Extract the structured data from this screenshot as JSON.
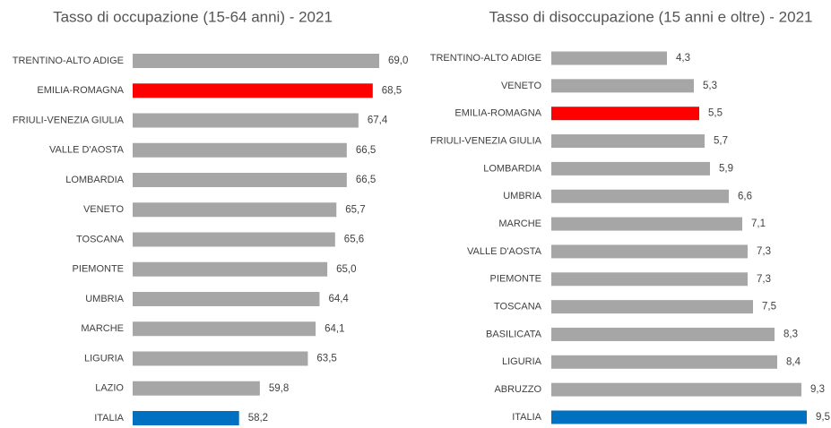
{
  "chart_data": [
    {
      "type": "bar",
      "orientation": "horizontal",
      "title": "Tasso di occupazione (15-64 anni) -  2021",
      "categories": [
        "TRENTINO-ALTO ADIGE",
        "EMILIA-ROMAGNA",
        "FRIULI-VENEZIA GIULIA",
        "VALLE D'AOSTA",
        "LOMBARDIA",
        "VENETO",
        "TOSCANA",
        "PIEMONTE",
        "UMBRIA",
        "MARCHE",
        "LIGURIA",
        "LAZIO",
        "ITALIA"
      ],
      "values": [
        69.0,
        68.5,
        67.4,
        66.5,
        66.5,
        65.7,
        65.6,
        65.0,
        64.4,
        64.1,
        63.5,
        59.8,
        58.2
      ],
      "value_labels": [
        "69,0",
        "68,5",
        "67,4",
        "66,5",
        "66,5",
        "65,7",
        "65,6",
        "65,0",
        "64,4",
        "64,1",
        "63,5",
        "59,8",
        "58,2"
      ],
      "colors": [
        "#a6a6a6",
        "#ff0000",
        "#a6a6a6",
        "#a6a6a6",
        "#a6a6a6",
        "#a6a6a6",
        "#a6a6a6",
        "#a6a6a6",
        "#a6a6a6",
        "#a6a6a6",
        "#a6a6a6",
        "#a6a6a6",
        "#0070c0"
      ],
      "xlim": [
        50,
        70
      ]
    },
    {
      "type": "bar",
      "orientation": "horizontal",
      "title": "Tasso di disoccupazione (15 anni e oltre) -  2021",
      "categories": [
        "TRENTINO-ALTO ADIGE",
        "VENETO",
        "EMILIA-ROMAGNA",
        "FRIULI-VENEZIA GIULIA",
        "LOMBARDIA",
        "UMBRIA",
        "MARCHE",
        "VALLE D'AOSTA",
        "PIEMONTE",
        "TOSCANA",
        "BASILICATA",
        "LIGURIA",
        "ABRUZZO",
        "ITALIA"
      ],
      "values": [
        4.3,
        5.3,
        5.5,
        5.7,
        5.9,
        6.6,
        7.1,
        7.3,
        7.3,
        7.5,
        8.3,
        8.4,
        9.3,
        9.5
      ],
      "value_labels": [
        "4,3",
        "5,3",
        "5,5",
        "5,7",
        "5,9",
        "6,6",
        "7,1",
        "7,3",
        "7,3",
        "7,5",
        "8,3",
        "8,4",
        "9,3",
        "9,5"
      ],
      "colors": [
        "#a6a6a6",
        "#a6a6a6",
        "#ff0000",
        "#a6a6a6",
        "#a6a6a6",
        "#a6a6a6",
        "#a6a6a6",
        "#a6a6a6",
        "#a6a6a6",
        "#a6a6a6",
        "#a6a6a6",
        "#a6a6a6",
        "#a6a6a6",
        "#0070c0"
      ],
      "xlim": [
        0,
        10
      ]
    }
  ]
}
